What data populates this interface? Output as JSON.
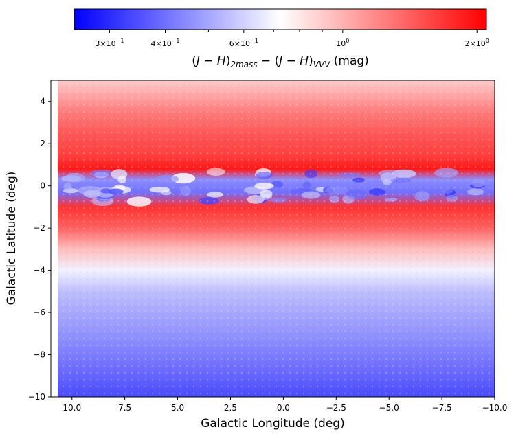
{
  "chart_data": {
    "type": "heatmap",
    "title": "",
    "xlabel": "Galactic Longitude (deg)",
    "ylabel": "Galactic Latitude (deg)",
    "xlim": [
      11,
      -10
    ],
    "ylim": [
      -10,
      5
    ],
    "x_inverted": true,
    "xticks": [
      10.0,
      7.5,
      5.0,
      2.5,
      0.0,
      -2.5,
      -5.0,
      -7.5,
      -10.0
    ],
    "xtick_labels": [
      "10.0",
      "7.5",
      "5.0",
      "2.5",
      "0.0",
      "−2.5",
      "−5.0",
      "−7.5",
      "−10.0"
    ],
    "yticks": [
      4,
      2,
      0,
      -2,
      -4,
      -6,
      -8,
      -10
    ],
    "ytick_labels": [
      "4",
      "2",
      "0",
      "−2",
      "−4",
      "−6",
      "−8",
      "−10"
    ],
    "colorbar": {
      "label_parts": {
        "open1": "(",
        "J1": "J",
        "minus1": " − ",
        "H1": "H",
        "close1": ")",
        "sub1": "2mass",
        "mid": " − (",
        "J2": "J",
        "minus2": " − ",
        "H2": "H",
        "close2": ")",
        "sub2": "VVV",
        "unit": " (mag)"
      },
      "scale": "log",
      "range": [
        0.25,
        2.1
      ],
      "center": 0.72,
      "colormap": "bwr",
      "ticks": [
        {
          "value": 0.3,
          "base": "3×10",
          "exp": "−1"
        },
        {
          "value": 0.4,
          "base": "4×10",
          "exp": "−1"
        },
        {
          "value": 0.6,
          "base": "6×10",
          "exp": "−1"
        },
        {
          "value": 1.0,
          "base": "10",
          "exp": "0"
        },
        {
          "value": 2.0,
          "base": "2×10",
          "exp": "0"
        }
      ],
      "minor_ticks": [
        0.5,
        0.7,
        0.8,
        0.9
      ]
    },
    "latitude_profile": [
      {
        "b": -10.0,
        "value": 0.34
      },
      {
        "b": -9.0,
        "value": 0.38
      },
      {
        "b": -8.0,
        "value": 0.42
      },
      {
        "b": -7.0,
        "value": 0.46
      },
      {
        "b": -6.0,
        "value": 0.5
      },
      {
        "b": -5.0,
        "value": 0.55
      },
      {
        "b": -4.0,
        "value": 0.68
      },
      {
        "b": -3.0,
        "value": 0.95
      },
      {
        "b": -2.0,
        "value": 1.4
      },
      {
        "b": -1.0,
        "value": 1.7
      },
      {
        "b": -0.3,
        "value": 0.4
      },
      {
        "b": 0.3,
        "value": 0.45
      },
      {
        "b": 0.8,
        "value": 1.9
      },
      {
        "b": 1.5,
        "value": 1.6
      },
      {
        "b": 2.5,
        "value": 1.45
      },
      {
        "b": 3.5,
        "value": 1.25
      },
      {
        "b": 4.5,
        "value": 1.0
      },
      {
        "b": 5.0,
        "value": 0.9
      }
    ],
    "colors": {
      "low": "#0000ff",
      "mid": "#ffffff",
      "high": "#ff0000"
    }
  }
}
